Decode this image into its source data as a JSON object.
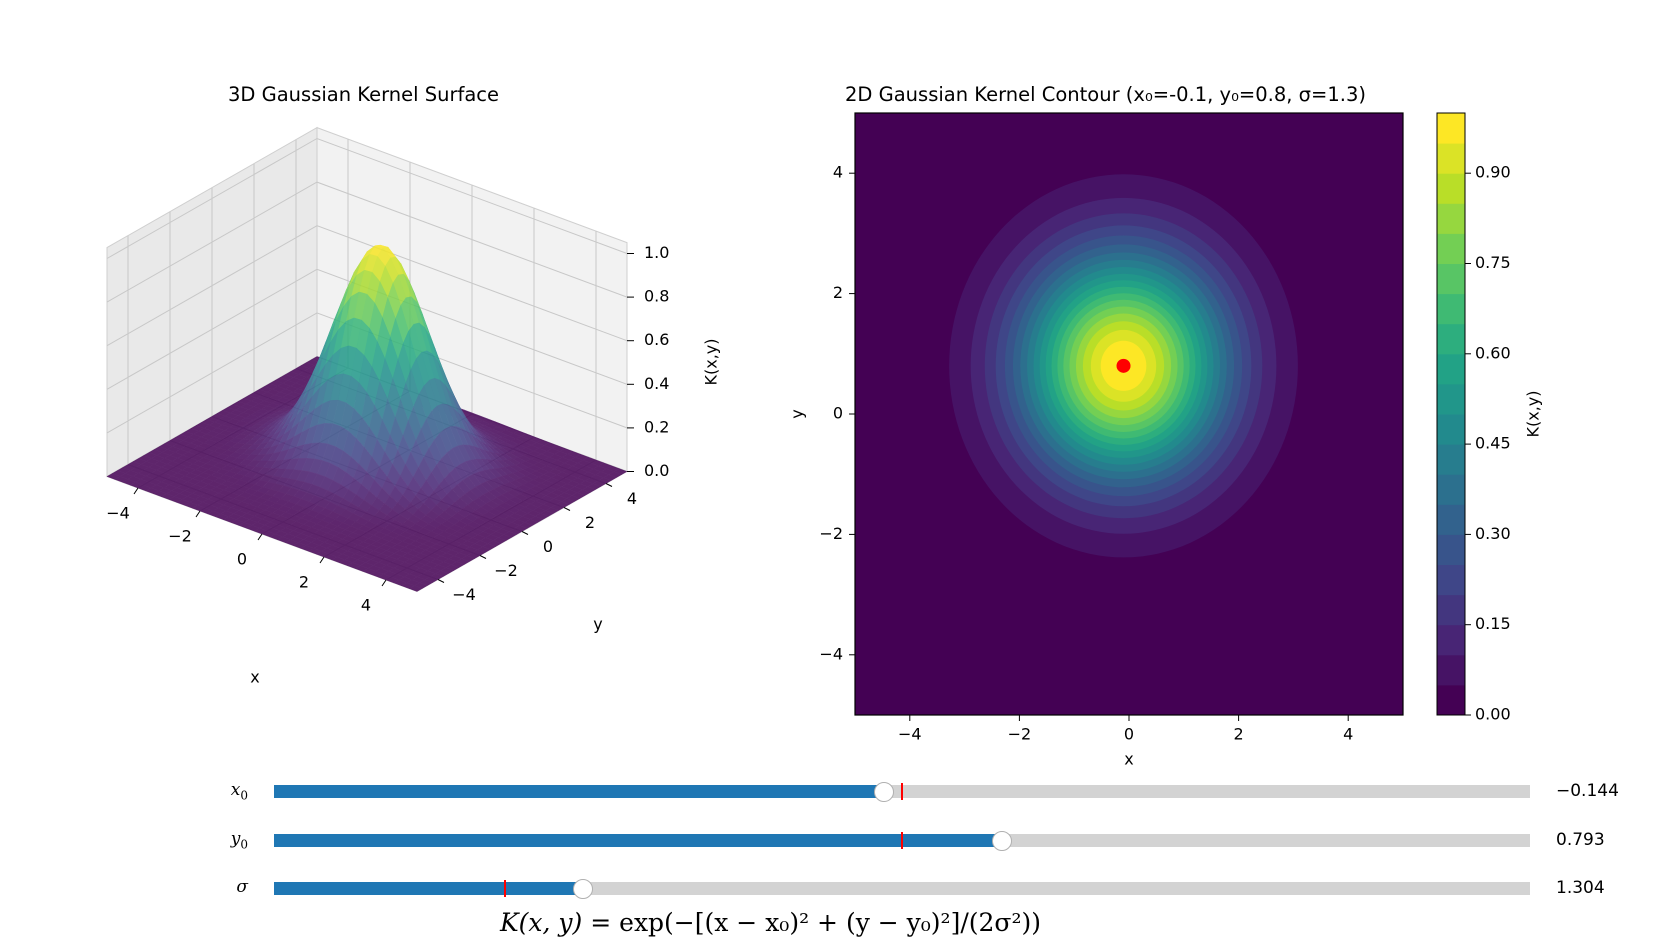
{
  "titles": {
    "surface": "3D Gaussian Kernel Surface",
    "contour": "2D Gaussian Kernel Contour (x₀=-0.1, y₀=0.8, σ=1.3)"
  },
  "chart_data": [
    {
      "type": "surface",
      "title": "3D Gaussian Kernel Surface",
      "xlabel": "x",
      "ylabel": "y",
      "zlabel": "K(x,y)",
      "xlim": [
        -5,
        5
      ],
      "ylim": [
        -5,
        5
      ],
      "zlim": [
        0,
        1.05
      ],
      "x_ticks": [
        "−4",
        "−2",
        "0",
        "2",
        "4"
      ],
      "y_ticks": [
        "−4",
        "−2",
        "0",
        "2",
        "4"
      ],
      "z_ticks": [
        "0.0",
        "0.2",
        "0.4",
        "0.6",
        "0.8",
        "1.0"
      ],
      "x0": -0.1,
      "y0": 0.8,
      "sigma": 1.3,
      "colormap": "viridis"
    },
    {
      "type": "heatmap",
      "title": "2D Gaussian Kernel Contour (x₀=-0.1, y₀=0.8, σ=1.3)",
      "xlabel": "x",
      "ylabel": "y",
      "xlim": [
        -5,
        5
      ],
      "ylim": [
        -5,
        5
      ],
      "x_ticks": [
        "−4",
        "−2",
        "0",
        "2",
        "4"
      ],
      "y_ticks": [
        "−4",
        "−2",
        "0",
        "2",
        "4"
      ],
      "x0": -0.1,
      "y0": 0.8,
      "sigma": 1.3,
      "levels": 20,
      "center_marker": {
        "x": -0.1,
        "y": 0.8,
        "color": "#ff0000"
      },
      "colorbar": {
        "label": "K(x,y)",
        "range": [
          0,
          1
        ],
        "ticks": [
          "0.00",
          "0.15",
          "0.30",
          "0.45",
          "0.60",
          "0.75",
          "0.90"
        ]
      }
    }
  ],
  "sliders": [
    {
      "name": "x0",
      "symbol": "x",
      "sub": "0",
      "min": -5,
      "max": 5,
      "value": -0.144,
      "initial": 0.0,
      "display": "−0.144"
    },
    {
      "name": "y0",
      "symbol": "y",
      "sub": "0",
      "min": -5,
      "max": 5,
      "value": 0.793,
      "initial": 0.0,
      "display": "0.793"
    },
    {
      "name": "sigma",
      "symbol": "σ",
      "sub": "",
      "min": 0.1,
      "max": 5,
      "value": 1.304,
      "initial": 1.0,
      "display": "1.304"
    }
  ],
  "formula": {
    "lhs": "K(x, y)",
    "rhs": "= exp(−[(x − x₀)² + (y − y₀)²]/(2σ²))"
  },
  "colors": {
    "slider_fill": "#1f77b4",
    "slider_track": "#d3d3d3",
    "init_marker": "#ff0000",
    "pane": "#f2f2f2"
  }
}
